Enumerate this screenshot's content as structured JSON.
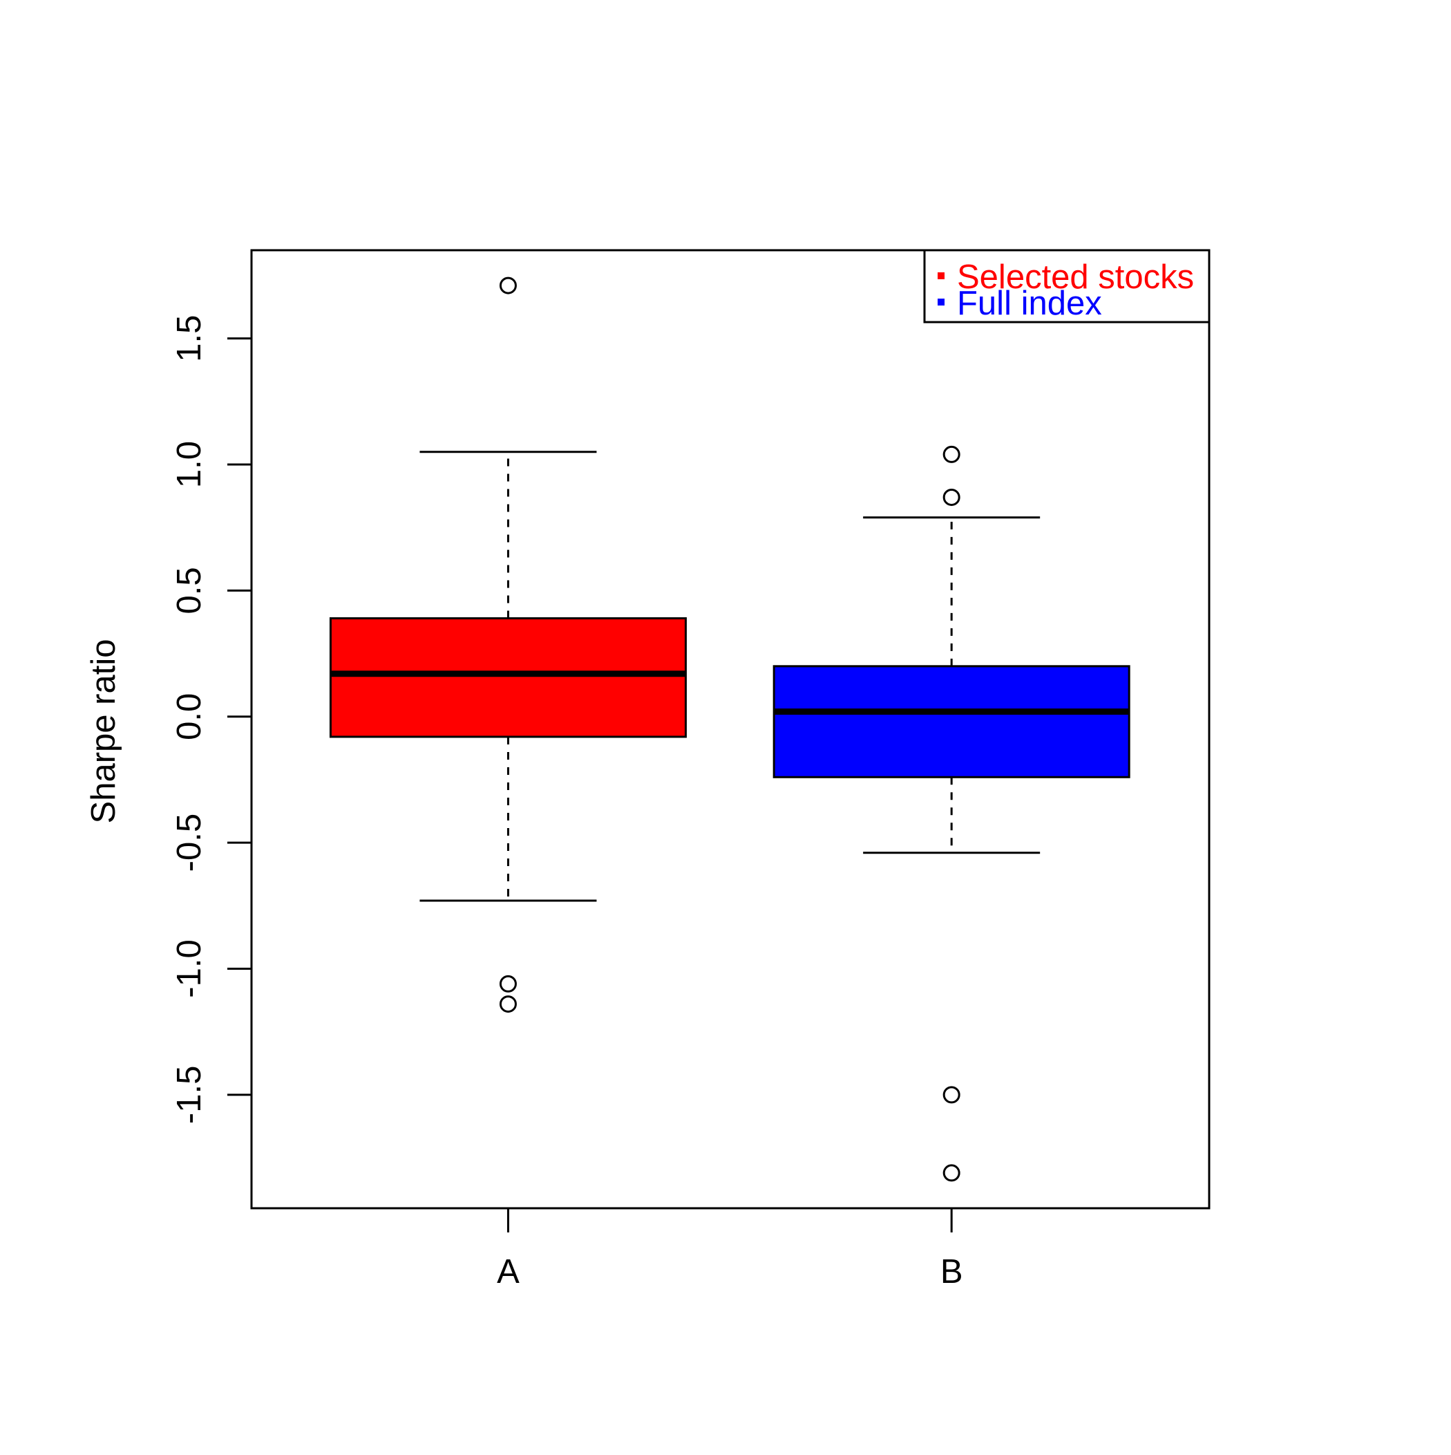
{
  "chart_data": {
    "type": "boxplot",
    "title": "",
    "xlabel": "",
    "ylabel": "Sharpe ratio",
    "ylim": [
      -1.95,
      1.85
    ],
    "yticks": [
      -1.5,
      -1.0,
      -0.5,
      0.0,
      0.5,
      1.0,
      1.5
    ],
    "ytick_labels": [
      "-1.5",
      "-1.0",
      "-0.5",
      "0.0",
      "0.5",
      "1.0",
      "1.5"
    ],
    "categories": [
      "A",
      "B"
    ],
    "boxes": [
      {
        "category": "A",
        "color": "#ff0000",
        "whisker_low": -0.73,
        "q1": -0.08,
        "median": 0.17,
        "q3": 0.39,
        "whisker_high": 1.05,
        "outliers": [
          1.71,
          -1.06,
          -1.14
        ]
      },
      {
        "category": "B",
        "color": "#0000ff",
        "whisker_low": -0.54,
        "q1": -0.24,
        "median": 0.02,
        "q3": 0.2,
        "whisker_high": 0.79,
        "outliers": [
          1.04,
          0.87,
          -1.5,
          -1.81
        ]
      }
    ],
    "legend": {
      "position": "top-right",
      "entries": [
        {
          "label": "Selected stocks",
          "color": "#ff0000"
        },
        {
          "label": "Full index",
          "color": "#0000ff"
        }
      ]
    },
    "grid": false
  }
}
